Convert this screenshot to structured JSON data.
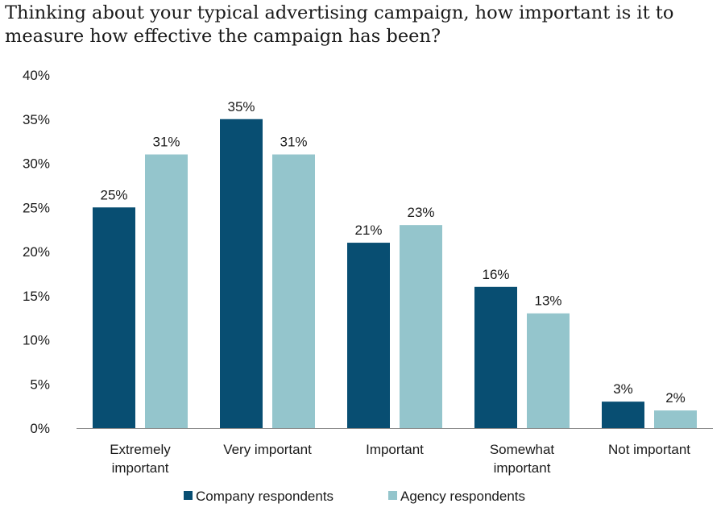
{
  "chart_data": {
    "type": "bar",
    "title": "Thinking about your typical advertising campaign, how important is it to measure how effective the campaign has been?",
    "categories": [
      [
        "Extremely",
        "important"
      ],
      [
        "Very important"
      ],
      [
        "Important"
      ],
      [
        "Somewhat",
        "important"
      ],
      [
        "Not important"
      ]
    ],
    "series": [
      {
        "name": "Company respondents",
        "values": [
          25,
          35,
          21,
          16,
          3
        ],
        "color": "#084e72"
      },
      {
        "name": "Agency respondents",
        "values": [
          31,
          31,
          23,
          13,
          2
        ],
        "color": "#94c5cc"
      }
    ],
    "ylim": [
      0,
      40
    ],
    "y_ticks": [
      0,
      5,
      10,
      15,
      20,
      25,
      30,
      35,
      40
    ],
    "value_format": "percent",
    "grid": false,
    "legend_position": "bottom"
  }
}
